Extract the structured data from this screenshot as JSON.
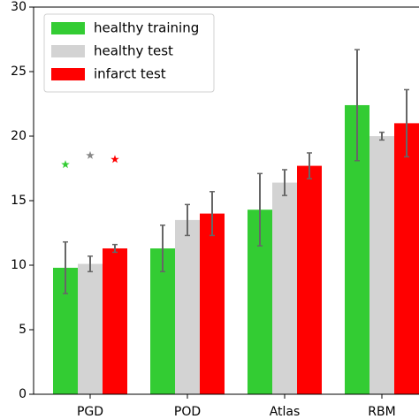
{
  "chart_data": {
    "type": "bar",
    "categories": [
      "PGD",
      "POD",
      "Atlas",
      "RBM"
    ],
    "series": [
      {
        "name": "healthy training",
        "color": "#33cc33",
        "values": [
          9.8,
          11.3,
          14.3,
          22.4
        ],
        "errors": [
          2.0,
          1.8,
          2.8,
          4.3
        ]
      },
      {
        "name": "healthy test",
        "color": "#d3d3d3",
        "values": [
          10.1,
          13.5,
          16.4,
          20.0
        ],
        "errors": [
          0.6,
          1.2,
          1.0,
          0.3
        ]
      },
      {
        "name": "infarct test",
        "color": "#ff0000",
        "values": [
          11.3,
          14.0,
          17.7,
          21.0
        ],
        "errors": [
          0.3,
          1.7,
          1.0,
          2.6
        ]
      }
    ],
    "stars": [
      17.8,
      18.5,
      18.2
    ],
    "ylim": [
      0,
      30
    ],
    "yticks": [
      0,
      5,
      10,
      15,
      20,
      25,
      30
    ],
    "legend": "upper left"
  }
}
